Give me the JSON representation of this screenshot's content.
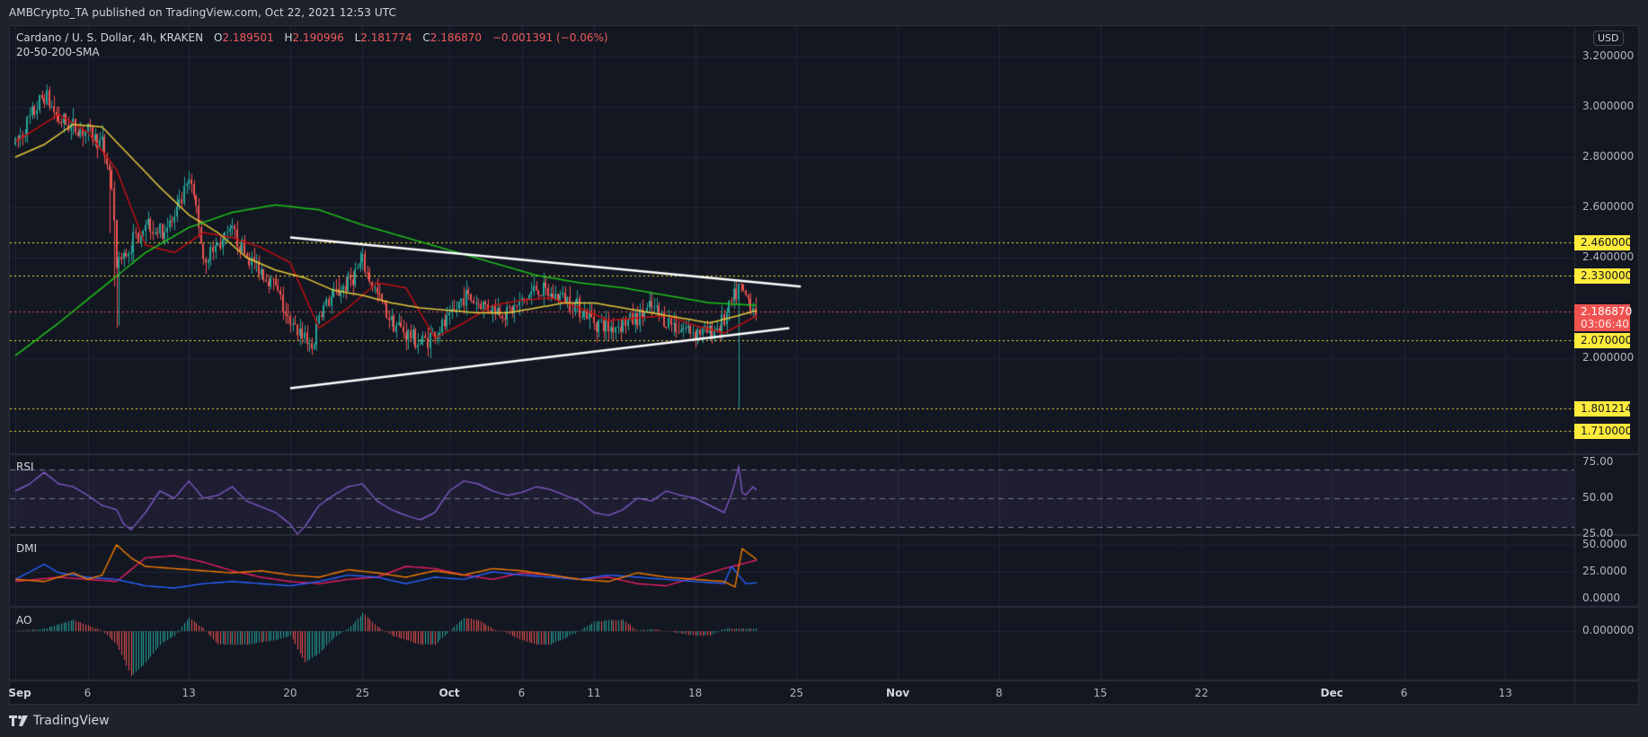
{
  "header": {
    "published_text": "AMBCrypto_TA published on TradingView.com, Oct 22, 2021 12:53 UTC"
  },
  "legend": {
    "symbol": "Cardano / U. S. Dollar, 4h, KRAKEN",
    "open_label": "O",
    "open": "2.189501",
    "high_label": "H",
    "high": "2.190996",
    "low_label": "L",
    "low": "2.181774",
    "close_label": "C",
    "close": "2.186870",
    "change": "−0.001391 (−0.06%)",
    "indicator": "20-50-200-SMA"
  },
  "price_axis": {
    "currency": "USD",
    "ticks": [
      "3.200000",
      "3.000000",
      "2.800000",
      "2.600000",
      "2.400000",
      "2.000000"
    ],
    "tick_values": [
      3.2,
      3.0,
      2.8,
      2.6,
      2.4,
      2.0
    ]
  },
  "horizontal_levels": [
    {
      "label": "2.460000",
      "value": 2.46,
      "color": "#ffeb3b"
    },
    {
      "label": "2.330000",
      "value": 2.33,
      "color": "#ffeb3b"
    },
    {
      "label": "2.070000",
      "value": 2.07,
      "color": "#ffeb3b"
    },
    {
      "label": "1.801214",
      "value": 1.801214,
      "color": "#ffeb3b"
    },
    {
      "label": "1.710000",
      "value": 1.71,
      "color": "#ffeb3b"
    }
  ],
  "last_price": {
    "value": "2.186870",
    "countdown": "03:06:40",
    "color": "#ef5350"
  },
  "indicators": {
    "rsi": {
      "label": "RSI",
      "ticks": [
        "75.00",
        "50.00",
        "25.00"
      ]
    },
    "dmi": {
      "label": "DMI",
      "ticks": [
        "50.0000",
        "25.0000",
        "0.0000"
      ]
    },
    "ao": {
      "label": "AO",
      "ticks": [
        "0.000000"
      ]
    }
  },
  "time_axis": [
    {
      "label": "Sep",
      "day": 1,
      "bold": true
    },
    {
      "label": "6",
      "day": 6
    },
    {
      "label": "13",
      "day": 13
    },
    {
      "label": "20",
      "day": 20
    },
    {
      "label": "25",
      "day": 25
    },
    {
      "label": "Oct",
      "day": 31,
      "bold": true
    },
    {
      "label": "6",
      "day": 36
    },
    {
      "label": "11",
      "day": 41
    },
    {
      "label": "18",
      "day": 48
    },
    {
      "label": "25",
      "day": 55
    },
    {
      "label": "Nov",
      "day": 62,
      "bold": true
    },
    {
      "label": "8",
      "day": 69
    },
    {
      "label": "15",
      "day": 76
    },
    {
      "label": "22",
      "day": 83
    },
    {
      "label": "Dec",
      "day": 92,
      "bold": true
    },
    {
      "label": "6",
      "day": 97
    },
    {
      "label": "13",
      "day": 104
    }
  ],
  "footer": {
    "brand": "TradingView"
  },
  "chart_data": {
    "type": "line",
    "title": "Cardano / U. S. Dollar, 4h, KRAKEN",
    "subtitle": "20-50-200-SMA",
    "xlabel": "",
    "ylabel": "USD",
    "ylim": [
      1.65,
      3.27
    ],
    "grid": true,
    "description": "ADA/USD 4h candlesticks, Sep 1 - Oct 22 2021, with SMA20 (red), SMA50 (yellow), SMA200 (green), symmetrical triangle trendlines (white), horizontal support/resistance levels (yellow dotted)",
    "price_path": {
      "days": [
        1,
        2,
        3,
        4,
        5,
        6,
        7,
        7.6,
        8,
        9,
        10,
        11,
        12,
        13,
        13.5,
        14,
        15,
        16,
        17,
        18,
        19,
        20,
        21,
        21.5,
        22,
        23,
        24,
        25,
        26,
        27,
        28,
        29,
        30,
        31,
        32,
        33,
        34,
        35,
        36,
        37,
        38,
        39,
        40,
        41,
        42,
        43,
        44,
        45,
        46,
        47,
        48,
        49,
        50,
        51,
        52.3
      ],
      "close": [
        2.85,
        2.95,
        3.05,
        2.95,
        2.92,
        2.9,
        2.85,
        2.72,
        2.35,
        2.45,
        2.55,
        2.5,
        2.55,
        2.7,
        2.6,
        2.4,
        2.45,
        2.5,
        2.4,
        2.35,
        2.28,
        2.12,
        2.1,
        2.03,
        2.18,
        2.25,
        2.3,
        2.38,
        2.25,
        2.15,
        2.1,
        2.06,
        2.1,
        2.15,
        2.25,
        2.22,
        2.2,
        2.18,
        2.22,
        2.28,
        2.25,
        2.24,
        2.2,
        2.15,
        2.12,
        2.14,
        2.16,
        2.2,
        2.15,
        2.12,
        2.11,
        2.1,
        2.15,
        2.28,
        2.187
      ]
    },
    "series": [
      {
        "name": "SMA 20",
        "color": "#c20f0f",
        "days": [
          1,
          4,
          6,
          8,
          10,
          12,
          14,
          16,
          18,
          20,
          22,
          24,
          26,
          28,
          30,
          32,
          34,
          36,
          38,
          40,
          42,
          44,
          46,
          48,
          50,
          52.3
        ],
        "values": [
          2.86,
          2.97,
          2.9,
          2.75,
          2.45,
          2.42,
          2.5,
          2.48,
          2.44,
          2.38,
          2.12,
          2.2,
          2.3,
          2.28,
          2.08,
          2.14,
          2.21,
          2.23,
          2.24,
          2.2,
          2.15,
          2.16,
          2.17,
          2.13,
          2.1,
          2.17
        ]
      },
      {
        "name": "SMA 50",
        "color": "#e3c83a",
        "days": [
          1,
          3,
          5,
          7,
          9,
          11,
          13,
          15,
          17,
          19,
          21,
          23,
          25,
          27,
          29,
          31,
          33,
          35,
          37,
          39,
          41,
          43,
          45,
          47,
          49,
          51,
          52.3
        ],
        "values": [
          2.8,
          2.85,
          2.93,
          2.92,
          2.8,
          2.68,
          2.57,
          2.5,
          2.4,
          2.35,
          2.32,
          2.27,
          2.25,
          2.22,
          2.2,
          2.19,
          2.18,
          2.18,
          2.2,
          2.22,
          2.22,
          2.2,
          2.18,
          2.16,
          2.14,
          2.17,
          2.19
        ]
      },
      {
        "name": "SMA 200",
        "color": "#1fc21a",
        "days": [
          1,
          4,
          7,
          10,
          13,
          16,
          19,
          22,
          25,
          28,
          31,
          34,
          37,
          40,
          43,
          46,
          49,
          52.3
        ],
        "values": [
          2.01,
          2.14,
          2.28,
          2.42,
          2.52,
          2.58,
          2.61,
          2.59,
          2.53,
          2.48,
          2.43,
          2.38,
          2.33,
          2.3,
          2.28,
          2.25,
          2.22,
          2.21
        ]
      }
    ],
    "trendlines": [
      {
        "name": "upper",
        "from": {
          "day": 20,
          "price": 2.48
        },
        "to": {
          "day": 55.3,
          "price": 2.285
        },
        "color": "#ffffff"
      },
      {
        "name": "lower",
        "from": {
          "day": 20,
          "price": 1.88
        },
        "to": {
          "day": 54.5,
          "price": 2.12
        },
        "color": "#ffffff"
      }
    ],
    "spike": {
      "day": 51.0,
      "high": 2.3,
      "low": 1.801214
    },
    "rsi": {
      "range": [
        0,
        100
      ],
      "band": [
        30,
        70
      ],
      "days": [
        1,
        2,
        3,
        4,
        5,
        6,
        7,
        8,
        8.5,
        9,
        10,
        11,
        12,
        13,
        14,
        15,
        16,
        17,
        18,
        19,
        20,
        20.5,
        21,
        22,
        23,
        24,
        25,
        26,
        27,
        28,
        29,
        30,
        31,
        32,
        33,
        34,
        35,
        36,
        37,
        38,
        39,
        40,
        41,
        42,
        43,
        44,
        45,
        46,
        47,
        48,
        49,
        50,
        50.6,
        51,
        51.3,
        52,
        52.3
      ],
      "values": [
        55,
        60,
        68,
        60,
        58,
        52,
        45,
        42,
        32,
        28,
        40,
        55,
        50,
        62,
        50,
        52,
        58,
        48,
        44,
        40,
        32,
        25,
        30,
        45,
        52,
        58,
        60,
        48,
        42,
        38,
        35,
        40,
        55,
        62,
        60,
        55,
        52,
        54,
        58,
        56,
        52,
        48,
        40,
        38,
        42,
        50,
        48,
        55,
        52,
        50,
        45,
        40,
        55,
        72,
        50,
        58,
        55
      ]
    },
    "dmi": {
      "range": [
        0,
        60
      ],
      "plus_di": {
        "color": "#2962ff",
        "days": [
          1,
          3,
          4,
          6,
          8,
          10,
          12,
          14,
          16,
          18,
          20,
          22,
          24,
          26,
          28,
          30,
          32,
          34,
          36,
          38,
          40,
          42,
          44,
          46,
          48,
          50,
          50.5,
          51,
          51.5,
          52.3
        ],
        "values": [
          18,
          32,
          24,
          20,
          18,
          12,
          10,
          14,
          16,
          14,
          12,
          16,
          22,
          20,
          14,
          20,
          18,
          25,
          22,
          20,
          18,
          22,
          20,
          18,
          16,
          14,
          30,
          22,
          14,
          15
        ]
      },
      "minus_di": {
        "color": "#f57c00",
        "days": [
          1,
          3,
          5,
          6,
          7,
          8,
          9,
          10,
          12,
          14,
          16,
          18,
          20,
          22,
          24,
          26,
          28,
          30,
          32,
          34,
          36,
          38,
          40,
          42,
          44,
          46,
          48,
          50,
          50.9,
          51.1,
          52.3
        ],
        "values": [
          18,
          16,
          24,
          18,
          22,
          50,
          38,
          30,
          28,
          26,
          24,
          26,
          22,
          20,
          27,
          24,
          20,
          26,
          22,
          28,
          26,
          22,
          18,
          16,
          24,
          20,
          18,
          16,
          10,
          48,
          36
        ]
      },
      "adx": {
        "color": "#e91e63",
        "days": [
          1,
          4,
          6,
          8,
          10,
          12,
          14,
          16,
          18,
          20,
          22,
          24,
          26,
          28,
          30,
          32,
          34,
          36,
          38,
          40,
          42,
          44,
          46,
          48,
          50,
          52.3
        ],
        "values": [
          16,
          20,
          18,
          16,
          38,
          40,
          34,
          26,
          20,
          16,
          14,
          18,
          20,
          30,
          28,
          22,
          18,
          24,
          22,
          18,
          20,
          14,
          12,
          20,
          28,
          36
        ]
      }
    },
    "ao": {
      "days": [
        1,
        3,
        5,
        7,
        8,
        9,
        10,
        11,
        12,
        13,
        14,
        15,
        17,
        19,
        20,
        21,
        22,
        23,
        24,
        25,
        26,
        27,
        28,
        29,
        30,
        31,
        32,
        33,
        34,
        35,
        36,
        37,
        38,
        39,
        40,
        41,
        42,
        43,
        44,
        45,
        46,
        47,
        48,
        49,
        50,
        51,
        52.3
      ],
      "values": [
        0,
        0.01,
        0.05,
        0,
        -0.06,
        -0.2,
        -0.14,
        -0.06,
        -0.02,
        0.06,
        0.01,
        -0.06,
        -0.06,
        -0.04,
        -0.02,
        -0.14,
        -0.1,
        -0.03,
        0.01,
        0.08,
        0.02,
        -0.02,
        -0.04,
        -0.06,
        -0.06,
        0.0,
        0.06,
        0.05,
        0.01,
        -0.01,
        -0.04,
        -0.06,
        -0.06,
        -0.03,
        0.0,
        0.04,
        0.05,
        0.05,
        0.0,
        0.01,
        0.0,
        -0.01,
        -0.02,
        -0.02,
        0.01,
        0.01,
        0.01
      ]
    }
  }
}
